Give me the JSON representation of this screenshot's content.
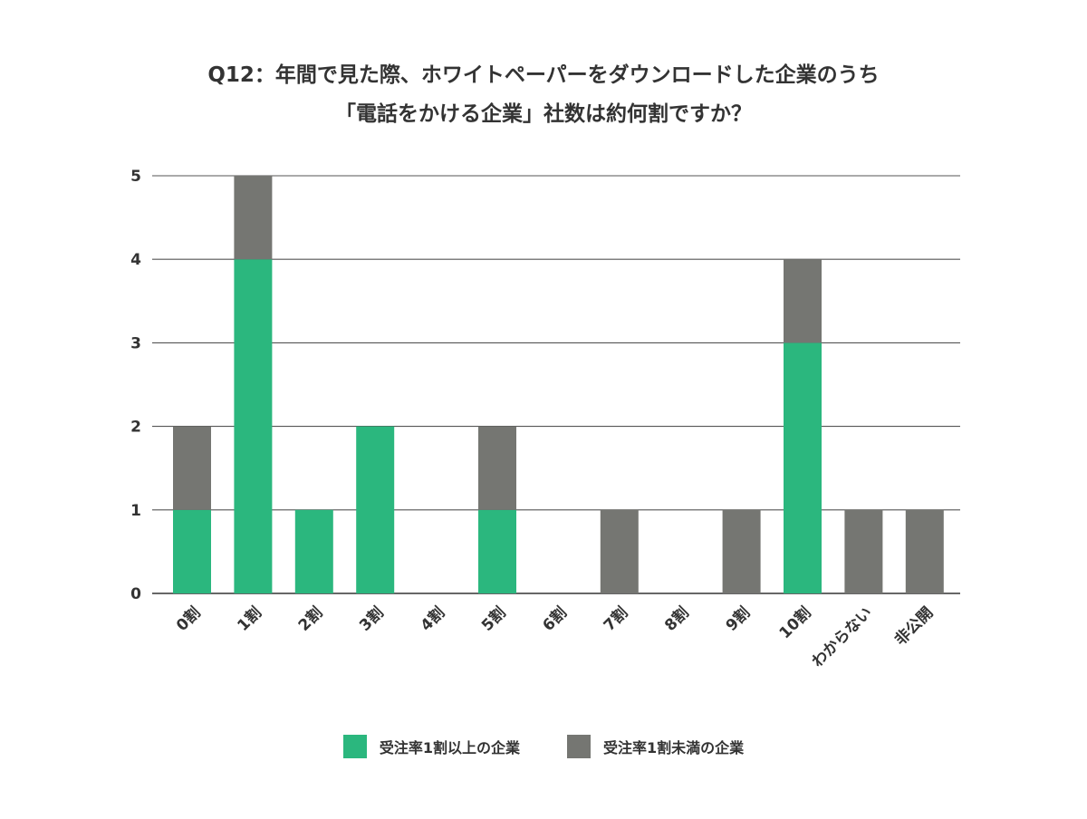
{
  "chart_data": {
    "type": "bar",
    "stacked": true,
    "title_lines": [
      "Q12：年間で見た際、ホワイトペーパーをダウンロードした企業のうち",
      "「電話をかける企業」社数は約何割ですか？"
    ],
    "categories": [
      "0割",
      "1割",
      "2割",
      "3割",
      "4割",
      "5割",
      "6割",
      "7割",
      "8割",
      "9割",
      "10割",
      "わからない",
      "非公開"
    ],
    "series": [
      {
        "name": "受注率1割以上の企業",
        "color": "#2bb77e",
        "values": [
          1,
          4,
          1,
          2,
          0,
          1,
          0,
          0,
          0,
          0,
          3,
          0,
          0
        ]
      },
      {
        "name": "受注率1割未満の企業",
        "color": "#757672",
        "values": [
          1,
          1,
          0,
          0,
          0,
          1,
          0,
          1,
          0,
          1,
          1,
          1,
          1
        ]
      }
    ],
    "ylim": [
      0,
      5
    ],
    "yticks": [
      0,
      1,
      2,
      3,
      4,
      5
    ],
    "grid": true,
    "legend_position": "bottom-center"
  }
}
